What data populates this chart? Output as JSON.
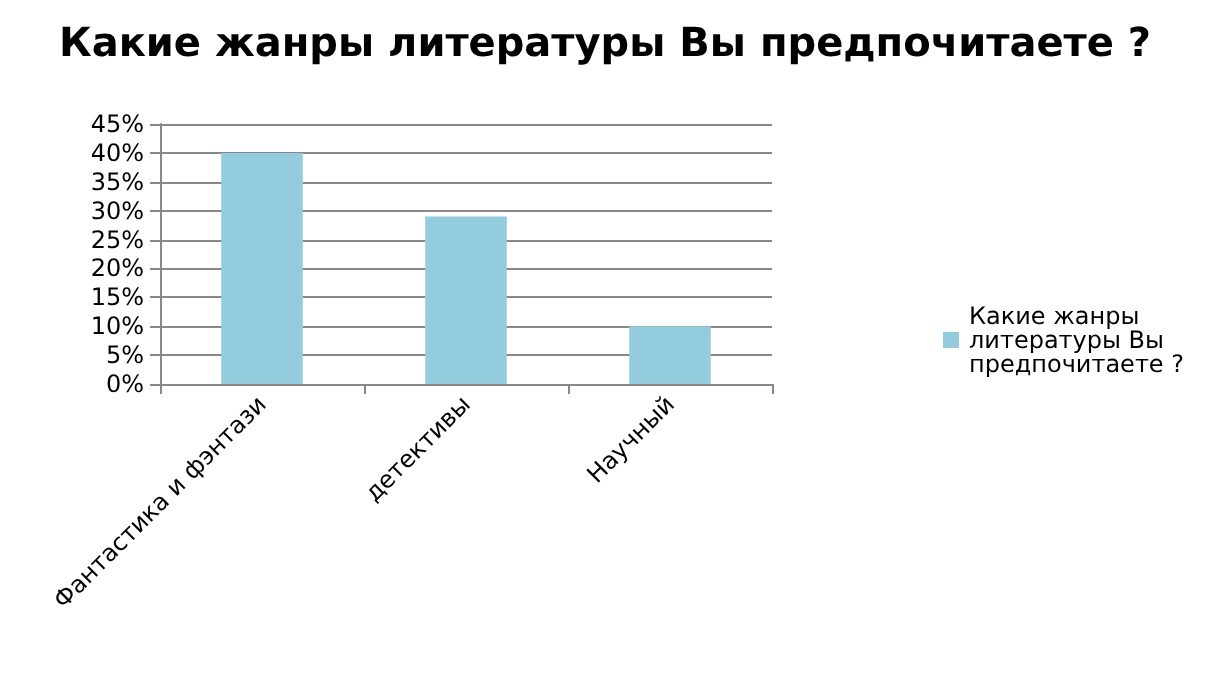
{
  "chart_data": {
    "type": "bar",
    "title": "Какие жанры литературы Вы предпочитаете ?",
    "categories": [
      "Фантастика и фэнтази",
      "детективы",
      "Научный"
    ],
    "series": [
      {
        "name": "Какие жанры литературы Вы предпочитаете ?",
        "color": "#93cddd",
        "values": [
          40,
          29,
          10
        ]
      }
    ],
    "ylim": [
      0,
      45
    ],
    "yticks": [
      {
        "value": 0,
        "label": "0%"
      },
      {
        "value": 5,
        "label": "5%"
      },
      {
        "value": 10,
        "label": "10%"
      },
      {
        "value": 15,
        "label": "15%"
      },
      {
        "value": 20,
        "label": "20%"
      },
      {
        "value": 25,
        "label": "25%"
      },
      {
        "value": 30,
        "label": "30%"
      },
      {
        "value": 35,
        "label": "35%"
      },
      {
        "value": 40,
        "label": "40%"
      },
      {
        "value": 45,
        "label": "45%"
      }
    ],
    "grid": "y",
    "legend": "right"
  }
}
